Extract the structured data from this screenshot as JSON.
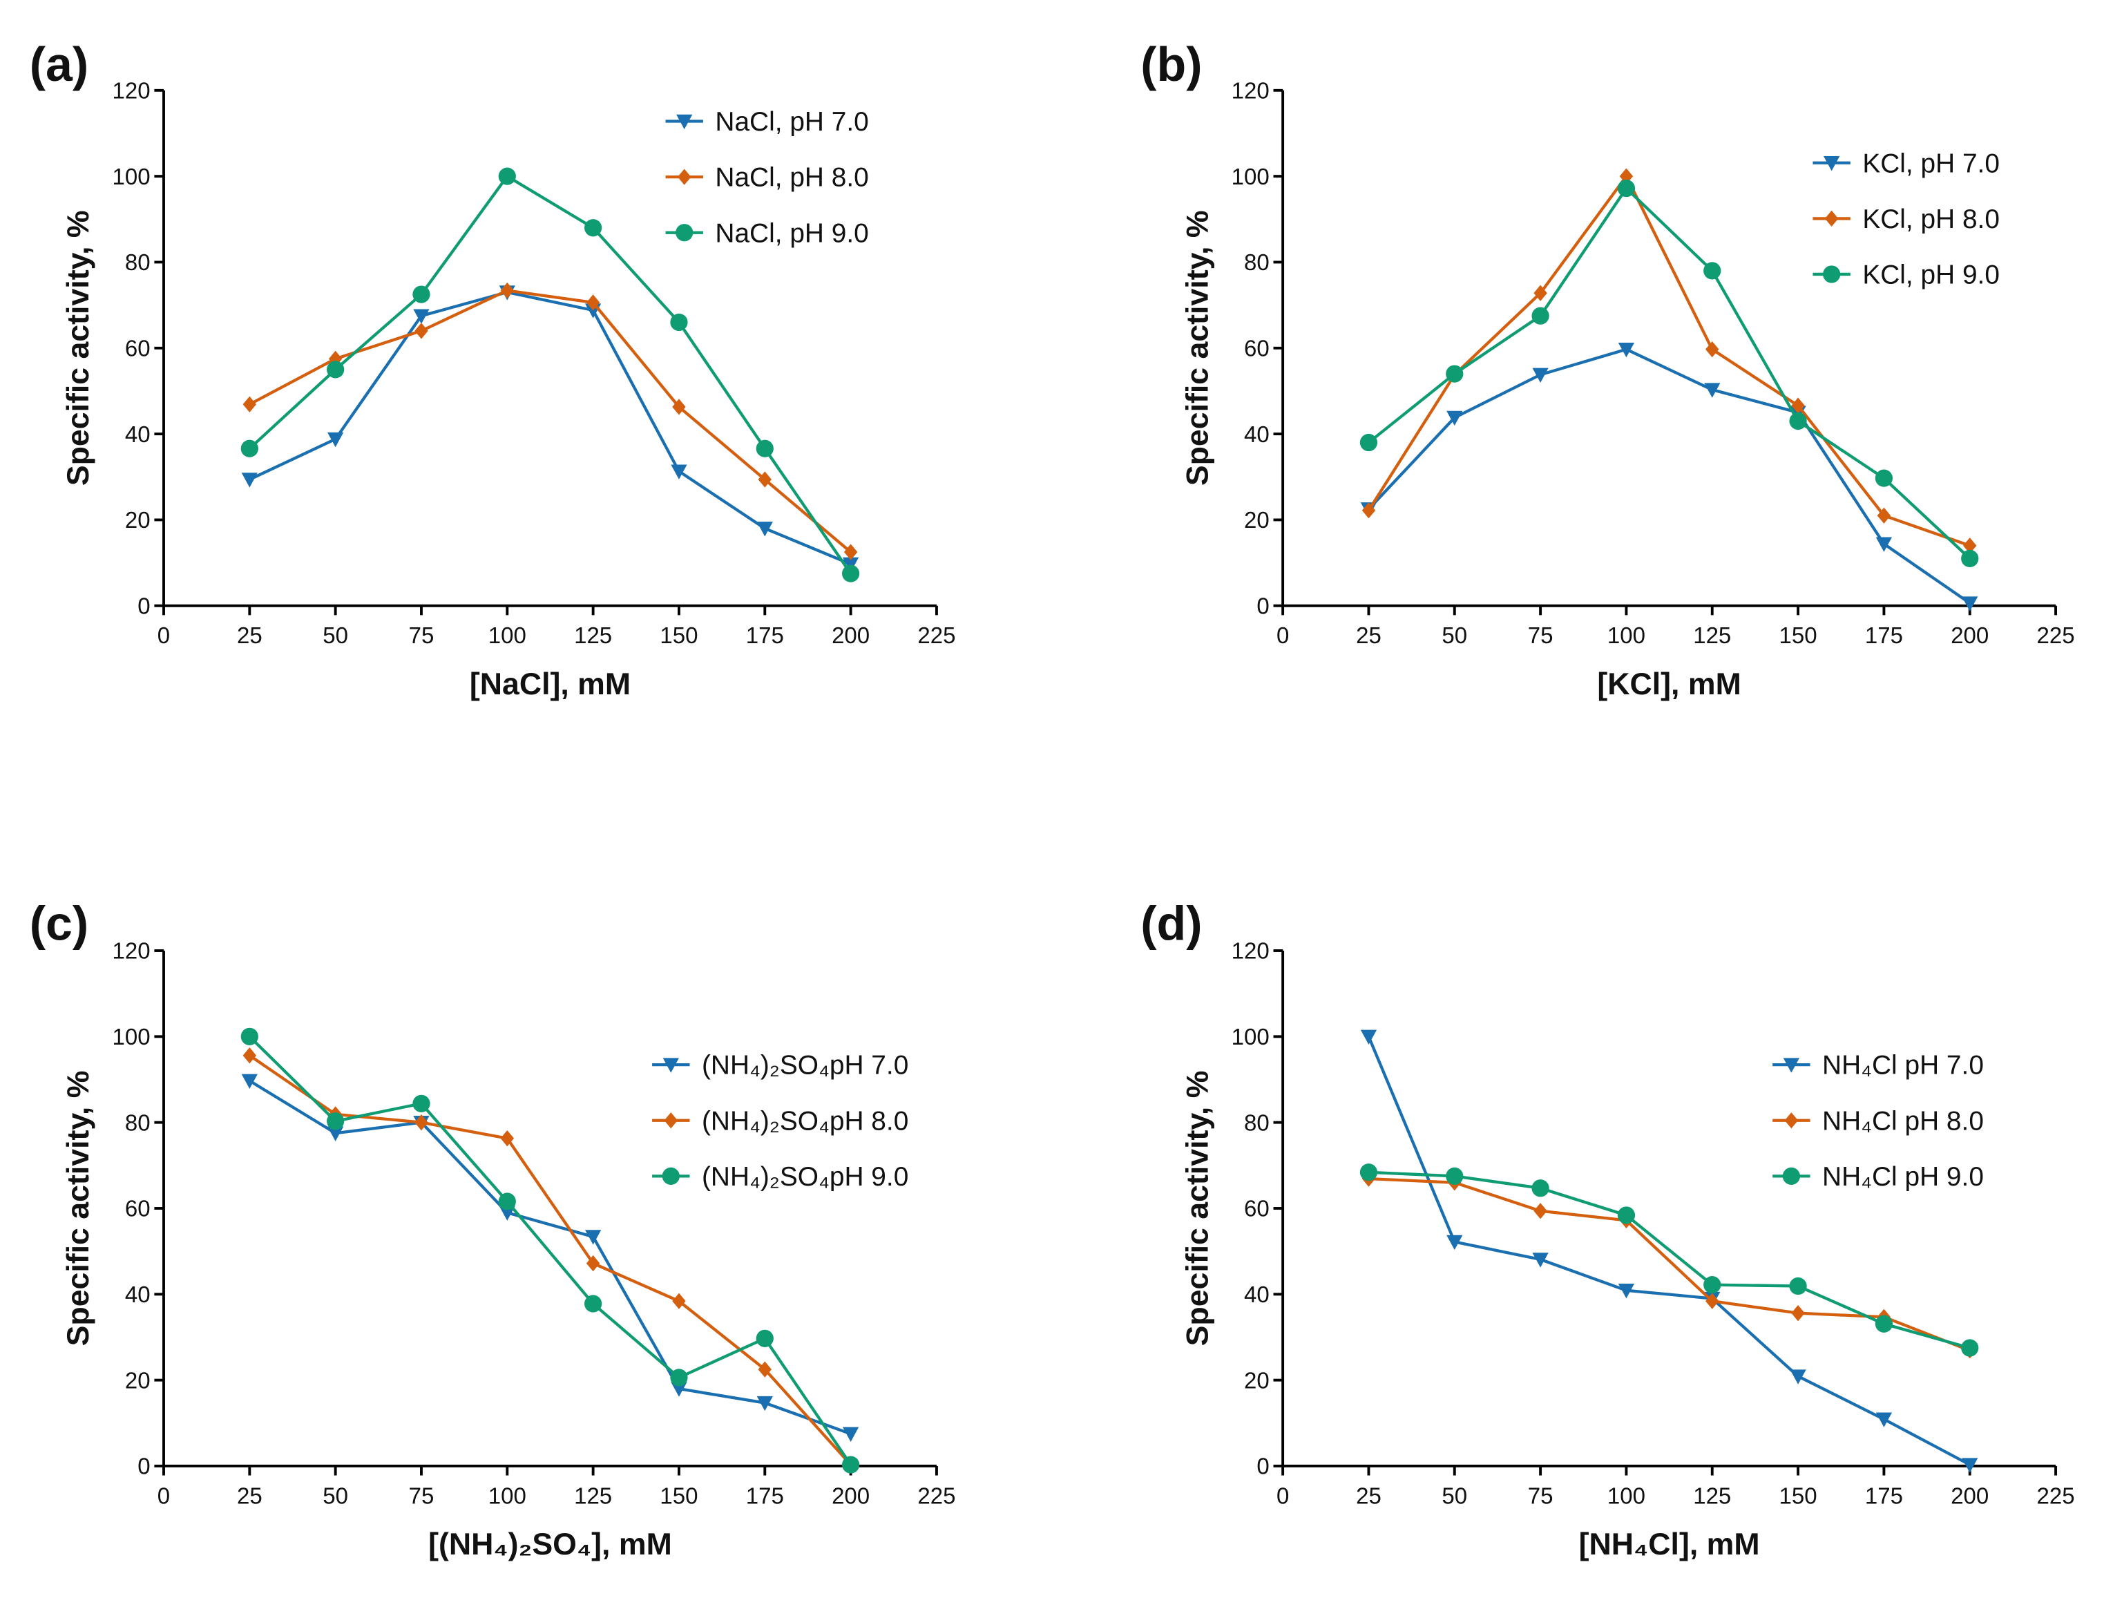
{
  "colors": {
    "ph7": "#1a6fb0",
    "ph8": "#d35f0f",
    "ph9": "#0f9c72"
  },
  "chart_data": [
    {
      "panel": "(a)",
      "type": "line",
      "xlabel": "[NaCl], mM",
      "ylabel": "Specific activity, %",
      "xlim": [
        0,
        225
      ],
      "ylim": [
        0,
        120
      ],
      "xticks": [
        0,
        25,
        50,
        75,
        100,
        125,
        150,
        175,
        200,
        225
      ],
      "yticks": [
        0,
        20,
        40,
        60,
        80,
        100,
        120
      ],
      "legend": "top-right",
      "grid": false,
      "x": [
        25,
        50,
        75,
        100,
        125,
        150,
        175,
        200
      ],
      "series": [
        {
          "name": "NaCl, pH 7.0",
          "marker": "triangle-down",
          "color": "ph7",
          "values": [
            29.4,
            38.8,
            67.5,
            73,
            68.8,
            31.3,
            18,
            9.7
          ]
        },
        {
          "name": "NaCl, pH 8.0",
          "marker": "diamond",
          "color": "ph8",
          "values": [
            46.9,
            57.5,
            64,
            73.4,
            70.6,
            46.3,
            29.4,
            12.5
          ]
        },
        {
          "name": "NaCl, pH 9.0",
          "marker": "circle",
          "color": "ph9",
          "values": [
            36.6,
            55,
            72.5,
            100,
            88,
            66,
            36.6,
            7.5
          ]
        }
      ]
    },
    {
      "panel": "(b)",
      "type": "line",
      "xlabel": "[KCl], mM",
      "ylabel": "Specific activity, %",
      "xlim": [
        0,
        225
      ],
      "ylim": [
        0,
        120
      ],
      "xticks": [
        0,
        25,
        50,
        75,
        100,
        125,
        150,
        175,
        200,
        225
      ],
      "yticks": [
        0,
        20,
        40,
        60,
        80,
        100,
        120
      ],
      "legend": "top-right",
      "grid": false,
      "x": [
        25,
        50,
        75,
        100,
        125,
        150,
        175,
        200
      ],
      "series": [
        {
          "name": "KCl, pH 7.0",
          "marker": "triangle-down",
          "color": "ph7",
          "values": [
            22.5,
            43.8,
            53.8,
            59.7,
            50.3,
            45,
            14.4,
            0.6
          ]
        },
        {
          "name": "KCl, pH 8.0",
          "marker": "diamond",
          "color": "ph8",
          "values": [
            22.2,
            53.8,
            72.8,
            100,
            59.7,
            46.6,
            21,
            14
          ]
        },
        {
          "name": "KCl, pH 9.0",
          "marker": "circle",
          "color": "ph9",
          "values": [
            38,
            54,
            67.5,
            97.2,
            78,
            43,
            29.7,
            11
          ]
        }
      ]
    },
    {
      "panel": "(c)",
      "type": "line",
      "xlabel": "[(NH₄)₂SO₄], mM",
      "ylabel": "Specific activity, %",
      "xlim": [
        0,
        225
      ],
      "ylim": [
        0,
        120
      ],
      "xticks": [
        0,
        25,
        50,
        75,
        100,
        125,
        150,
        175,
        200,
        225
      ],
      "yticks": [
        0,
        20,
        40,
        60,
        80,
        100,
        120
      ],
      "legend": "right",
      "grid": false,
      "x": [
        25,
        50,
        75,
        100,
        125,
        150,
        175,
        200
      ],
      "series": [
        {
          "name": "(NH₄)₂SO₄pH 7.0",
          "marker": "triangle-down",
          "color": "ph7",
          "values": [
            89.7,
            77.5,
            80,
            59,
            53.4,
            18,
            14.7,
            7.5
          ]
        },
        {
          "name": "(NH₄)₂SO₄pH 8.0",
          "marker": "diamond",
          "color": "ph8",
          "values": [
            95.6,
            81.9,
            80,
            76.3,
            47.2,
            38.4,
            22.5,
            0.3
          ]
        },
        {
          "name": "(NH₄)₂SO₄pH 9.0",
          "marker": "circle",
          "color": "ph9",
          "values": [
            100,
            80.3,
            84.4,
            61.6,
            37.8,
            20.6,
            29.7,
            0.3
          ]
        }
      ]
    },
    {
      "panel": "(d)",
      "type": "line",
      "xlabel": "[NH₄Cl], mM",
      "ylabel": "Specific activity, %",
      "xlim": [
        0,
        225
      ],
      "ylim": [
        0,
        120
      ],
      "xticks": [
        0,
        25,
        50,
        75,
        100,
        125,
        150,
        175,
        200,
        225
      ],
      "yticks": [
        0,
        20,
        40,
        60,
        80,
        100,
        120
      ],
      "legend": "right",
      "grid": false,
      "x": [
        25,
        50,
        75,
        100,
        125,
        150,
        175,
        200
      ],
      "series": [
        {
          "name": "NH₄Cl pH 7.0",
          "marker": "triangle-down",
          "color": "ph7",
          "values": [
            100,
            52.2,
            48.1,
            40.9,
            39,
            20.9,
            10.9,
            0.3
          ]
        },
        {
          "name": "NH₄Cl pH 8.0",
          "marker": "diamond",
          "color": "ph8",
          "values": [
            66.9,
            66,
            59.4,
            57.2,
            38.4,
            35.6,
            34.7,
            26.9
          ]
        },
        {
          "name": "NH₄Cl pH 9.0",
          "marker": "circle",
          "color": "ph9",
          "values": [
            68.4,
            67.5,
            64.7,
            58.4,
            42.2,
            41.9,
            33.1,
            27.5
          ]
        }
      ]
    }
  ]
}
